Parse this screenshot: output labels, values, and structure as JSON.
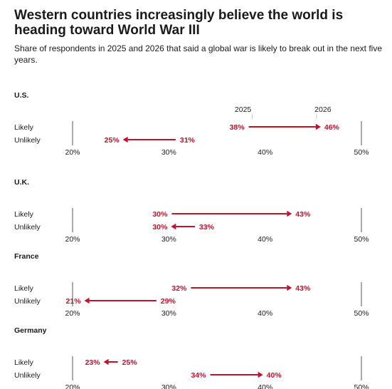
{
  "title": "Western countries increasingly believe the world is heading toward World War III",
  "subtitle": "Share of respondents in 2025 and 2026 that said a global war is likely to break out in the next five years.",
  "legend": {
    "start": "2025",
    "end": "2026"
  },
  "colors": {
    "arrow": "#c0122c",
    "text": "#1a1a1a",
    "axis": "#555555"
  },
  "chart_data": {
    "type": "dumbbell-arrow",
    "title": "Western countries increasingly believe the world is heading toward World War III",
    "subtitle": "Share of respondents in 2025 and 2026 that said a global war is likely to break out in the next five years.",
    "xlim": [
      20,
      50
    ],
    "ticks": [
      20,
      30,
      40,
      50
    ],
    "tick_labels": [
      "20%",
      "30%",
      "40%",
      "50%"
    ],
    "series_names": [
      "2025",
      "2026"
    ],
    "categories": [
      "Likely",
      "Unlikely"
    ],
    "panels": [
      {
        "name": "U.S.",
        "rows": [
          {
            "label": "Likely",
            "from": 38,
            "to": 46,
            "from_label": "38%",
            "to_label": "46%"
          },
          {
            "label": "Unlikely",
            "from": 31,
            "to": 25,
            "from_label": "31%",
            "to_label": "25%"
          }
        ]
      },
      {
        "name": "U.K.",
        "rows": [
          {
            "label": "Likely",
            "from": 30,
            "to": 43,
            "from_label": "30%",
            "to_label": "43%"
          },
          {
            "label": "Unlikely",
            "from": 33,
            "to": 30,
            "from_label": "33%",
            "to_label": "30%"
          }
        ]
      },
      {
        "name": "France",
        "rows": [
          {
            "label": "Likely",
            "from": 32,
            "to": 43,
            "from_label": "32%",
            "to_label": "43%"
          },
          {
            "label": "Unlikely",
            "from": 29,
            "to": 21,
            "from_label": "29%",
            "to_label": "21%"
          }
        ]
      },
      {
        "name": "Germany",
        "rows": [
          {
            "label": "Likely",
            "from": 25,
            "to": 23,
            "from_label": "25%",
            "to_label": "23%"
          },
          {
            "label": "Unlikely",
            "from": 34,
            "to": 40,
            "from_label": "34%",
            "to_label": "40%"
          }
        ]
      }
    ]
  }
}
